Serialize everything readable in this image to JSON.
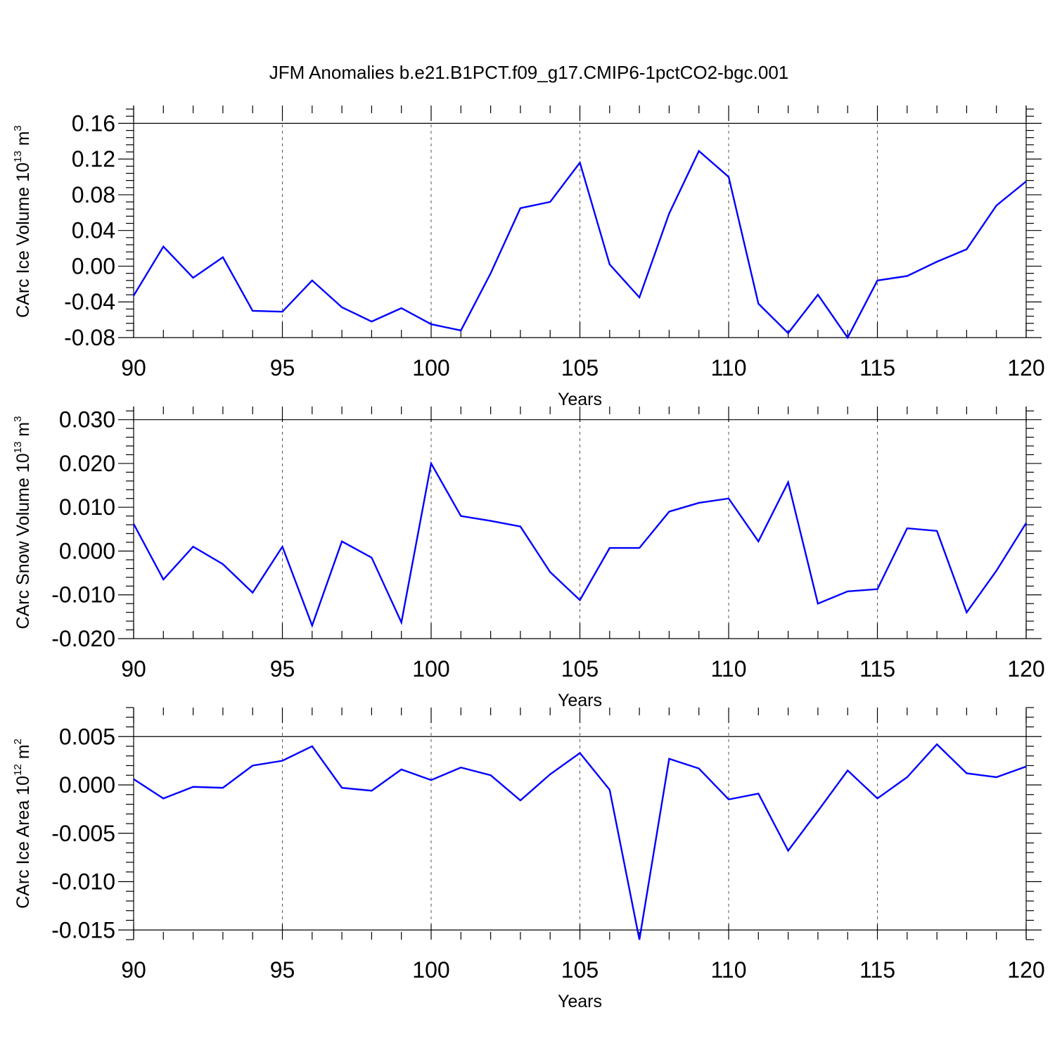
{
  "chart_data": [
    {
      "type": "line",
      "title": "JFM Anomalies b.e21.B1PCT.f09_g17.CMIP6-1pctCO2-bgc.001",
      "xlabel": "Years",
      "ylabel": "CArc Ice Volume 10",
      "ylabel_exp": "13",
      "ylabel_unit": " m",
      "ylabel_unit_exp": "3",
      "color": "#0000ff",
      "xlim": [
        90,
        120
      ],
      "ylim": [
        -0.08,
        0.18
      ],
      "xticks": [
        90,
        95,
        100,
        105,
        110,
        115,
        120
      ],
      "xtick_labels": [
        "90",
        "95",
        "100",
        "105",
        "110",
        "115",
        "120"
      ],
      "yticks": [
        -0.08,
        -0.04,
        0.0,
        0.04,
        0.08,
        0.12,
        0.16
      ],
      "ytick_labels": [
        "-0.08",
        "-0.04",
        "0.00",
        "0.04",
        "0.08",
        "0.12",
        "0.16"
      ],
      "grid": "vertical dashed at major x ticks",
      "x": [
        90,
        91,
        92,
        93,
        94,
        95,
        96,
        97,
        98,
        99,
        100,
        101,
        102,
        103,
        104,
        105,
        106,
        107,
        108,
        109,
        110,
        111,
        112,
        113,
        114,
        115,
        116,
        117,
        118,
        119,
        120
      ],
      "values": [
        -0.033,
        0.022,
        -0.013,
        0.01,
        -0.05,
        -0.051,
        -0.016,
        -0.046,
        -0.062,
        -0.047,
        -0.065,
        -0.072,
        -0.008,
        0.065,
        0.072,
        0.116,
        0.002,
        -0.035,
        0.059,
        0.129,
        0.1,
        -0.042,
        -0.075,
        -0.032,
        -0.08,
        -0.016,
        -0.011,
        0.005,
        0.019,
        0.068,
        0.095
      ]
    },
    {
      "type": "line",
      "title": "",
      "xlabel": "Years",
      "ylabel": "CArc Snow Volume 10",
      "ylabel_exp": "13",
      "ylabel_unit": " m",
      "ylabel_unit_exp": "3",
      "color": "#0000ff",
      "xlim": [
        90,
        120
      ],
      "ylim": [
        -0.02,
        0.033
      ],
      "xticks": [
        90,
        95,
        100,
        105,
        110,
        115,
        120
      ],
      "xtick_labels": [
        "90",
        "95",
        "100",
        "105",
        "110",
        "115",
        "120"
      ],
      "yticks": [
        -0.02,
        -0.01,
        0.0,
        0.01,
        0.02,
        0.03
      ],
      "ytick_labels": [
        "-0.020",
        "-0.010",
        "0.000",
        "0.010",
        "0.020",
        "0.030"
      ],
      "grid": "vertical dashed at major x ticks",
      "x": [
        90,
        91,
        92,
        93,
        94,
        95,
        96,
        97,
        98,
        99,
        100,
        101,
        102,
        103,
        104,
        105,
        106,
        107,
        108,
        109,
        110,
        111,
        112,
        113,
        114,
        115,
        116,
        117,
        118,
        119,
        120
      ],
      "values": [
        0.0062,
        -0.0065,
        0.001,
        -0.003,
        -0.0095,
        0.001,
        -0.017,
        0.0022,
        -0.0015,
        -0.0163,
        0.02,
        0.008,
        0.0069,
        0.0056,
        -0.0048,
        -0.0112,
        0.0007,
        0.0007,
        0.009,
        0.011,
        0.012,
        0.0022,
        0.0157,
        -0.012,
        -0.0092,
        -0.0087,
        0.0052,
        0.0046,
        -0.014,
        -0.0045,
        0.0064
      ]
    },
    {
      "type": "line",
      "title": "",
      "xlabel": "Years",
      "ylabel": "CArc Ice Area 10",
      "ylabel_exp": "12",
      "ylabel_unit": " m",
      "ylabel_unit_exp": "2",
      "color": "#0000ff",
      "xlim": [
        90,
        120
      ],
      "ylim": [
        -0.016,
        0.008
      ],
      "xticks": [
        90,
        95,
        100,
        105,
        110,
        115,
        120
      ],
      "xtick_labels": [
        "90",
        "95",
        "100",
        "105",
        "110",
        "115",
        "120"
      ],
      "yticks": [
        -0.015,
        -0.01,
        -0.005,
        0.0,
        0.005
      ],
      "ytick_labels": [
        "-0.015",
        "-0.010",
        "-0.005",
        "0.000",
        "0.005"
      ],
      "grid": "vertical dashed at major x ticks",
      "x": [
        90,
        91,
        92,
        93,
        94,
        95,
        96,
        97,
        98,
        99,
        100,
        101,
        102,
        103,
        104,
        105,
        106,
        107,
        108,
        109,
        110,
        111,
        112,
        113,
        114,
        115,
        116,
        117,
        118,
        119,
        120
      ],
      "values": [
        0.0006,
        -0.0014,
        -0.0002,
        -0.0003,
        0.002,
        0.0025,
        0.004,
        -0.0003,
        -0.0006,
        0.0016,
        0.0005,
        0.0018,
        0.001,
        -0.0016,
        0.0011,
        0.0033,
        -0.0005,
        -0.016,
        0.0027,
        0.0017,
        -0.0015,
        -0.0009,
        -0.0068,
        -0.0027,
        0.0015,
        -0.0014,
        0.0008,
        0.0042,
        0.0012,
        0.0008,
        0.0019
      ]
    }
  ]
}
